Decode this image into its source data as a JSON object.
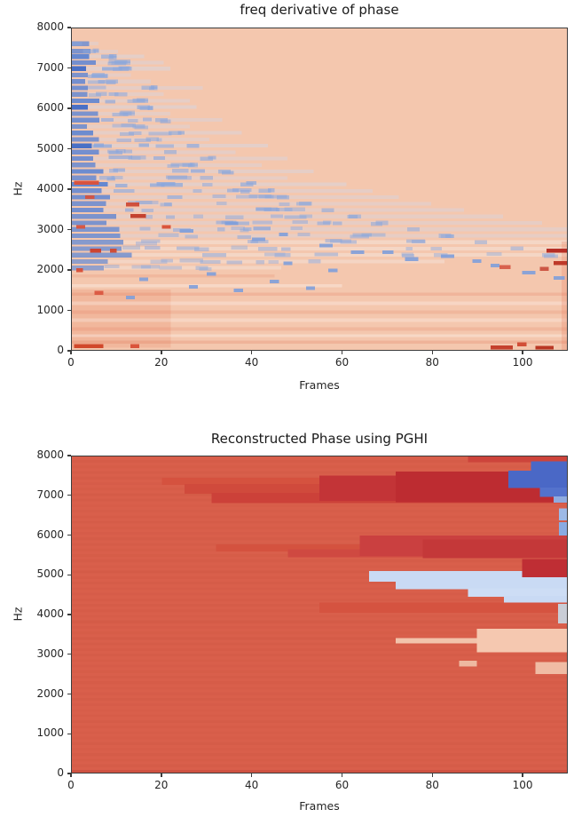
{
  "figure": {
    "background": "#ffffff",
    "spine_color": "#3c3c3c"
  },
  "chart_data": [
    {
      "type": "heatmap",
      "colormap": "coolwarm",
      "title": "freq derivative of phase",
      "xlabel": "Frames",
      "ylabel": "Hz",
      "xlim": [
        0,
        110
      ],
      "ylim": [
        0,
        8000
      ],
      "xticks": [
        0,
        20,
        40,
        60,
        80,
        100
      ],
      "yticks": [
        0,
        1000,
        2000,
        3000,
        4000,
        5000,
        6000,
        7000,
        8000
      ],
      "grid": false,
      "bg": "#f4c7ae",
      "streak_color": "#5d83d0",
      "streak_color_strong": "#4a70c6",
      "streak_color_light": "#8aa6dc",
      "tail_color_high": "rgba(210,216,232,0.55)",
      "tail_color_low": "rgba(244,238,235,0.6)",
      "rows": [
        {
          "hz": 7620,
          "end": 2,
          "s": 0.5
        },
        {
          "hz": 7430,
          "end": 5,
          "s": 0.6
        },
        {
          "hz": 7300,
          "end": 9,
          "s": 0.9
        },
        {
          "hz": 7150,
          "end": 12,
          "s": 0.7
        },
        {
          "hz": 7000,
          "end": 13,
          "s": 1.0
        },
        {
          "hz": 6840,
          "end": 7,
          "s": 0.6
        },
        {
          "hz": 6680,
          "end": 10,
          "s": 0.7
        },
        {
          "hz": 6520,
          "end": 18,
          "s": 0.7
        },
        {
          "hz": 6360,
          "end": 12,
          "s": 0.6
        },
        {
          "hz": 6200,
          "end": 16,
          "s": 0.8
        },
        {
          "hz": 6040,
          "end": 17,
          "s": 1.0
        },
        {
          "hz": 5880,
          "end": 13,
          "s": 0.6
        },
        {
          "hz": 5720,
          "end": 21,
          "s": 0.7
        },
        {
          "hz": 5560,
          "end": 16,
          "s": 0.6
        },
        {
          "hz": 5400,
          "end": 24,
          "s": 0.8
        },
        {
          "hz": 5240,
          "end": 19,
          "s": 0.6
        },
        {
          "hz": 5080,
          "end": 28,
          "s": 1.0
        },
        {
          "hz": 4920,
          "end": 23,
          "s": 0.7
        },
        {
          "hz": 4760,
          "end": 31,
          "s": 0.7
        },
        {
          "hz": 4600,
          "end": 27,
          "s": 0.6
        },
        {
          "hz": 4440,
          "end": 35,
          "s": 0.8
        },
        {
          "hz": 4280,
          "end": 31,
          "s": 0.6
        },
        {
          "hz": 4120,
          "end": 40,
          "s": 0.9
        },
        {
          "hz": 3960,
          "end": 44,
          "s": 0.7
        },
        {
          "hz": 3800,
          "end": 48,
          "s": 0.7
        },
        {
          "hz": 3640,
          "end": 53,
          "s": 0.6
        },
        {
          "hz": 3480,
          "end": 58,
          "s": 0.7
        },
        {
          "hz": 3320,
          "end": 64,
          "s": 0.6
        },
        {
          "hz": 3160,
          "end": 70,
          "s": 0.6
        },
        {
          "hz": 3000,
          "end": 77,
          "s": 0.55
        },
        {
          "hz": 2840,
          "end": 84,
          "s": 0.55
        },
        {
          "hz": 2680,
          "end": 92,
          "s": 0.5
        },
        {
          "hz": 2520,
          "end": 100,
          "s": 0.5
        },
        {
          "hz": 2360,
          "end": 107,
          "s": 0.5
        },
        {
          "hz": 2200,
          "end": 55,
          "s": 0.4
        },
        {
          "hz": 2040,
          "end": 30,
          "s": 0.35
        }
      ],
      "specks_blue": [
        {
          "x": [
            24,
            27
          ],
          "hz": 2960
        },
        {
          "x": [
            34,
            37
          ],
          "hz": 3150
        },
        {
          "x": [
            40,
            43
          ],
          "hz": 2750
        },
        {
          "x": [
            46,
            48
          ],
          "hz": 2870
        },
        {
          "x": [
            55,
            58
          ],
          "hz": 2600
        },
        {
          "x": [
            62,
            65
          ],
          "hz": 2430
        },
        {
          "x": [
            69,
            71.5
          ],
          "hz": 2430
        },
        {
          "x": [
            74,
            77
          ],
          "hz": 2260
        },
        {
          "x": [
            47,
            49
          ],
          "hz": 2150
        },
        {
          "x": [
            57,
            59
          ],
          "hz": 1980
        },
        {
          "x": [
            30,
            32
          ],
          "hz": 1890
        },
        {
          "x": [
            15,
            17
          ],
          "hz": 1760
        },
        {
          "x": [
            26,
            28
          ],
          "hz": 1570
        },
        {
          "x": [
            36,
            38
          ],
          "hz": 1480
        },
        {
          "x": [
            82,
            85
          ],
          "hz": 2330
        },
        {
          "x": [
            89,
            91
          ],
          "hz": 2210
        },
        {
          "x": [
            93,
            95
          ],
          "hz": 2100
        },
        {
          "x": [
            100,
            103
          ],
          "hz": 1920
        },
        {
          "x": [
            107,
            109.5
          ],
          "hz": 1790
        },
        {
          "x": [
            44,
            46
          ],
          "hz": 1700
        },
        {
          "x": [
            52,
            54
          ],
          "hz": 1540
        },
        {
          "x": [
            12,
            14
          ],
          "hz": 1300
        }
      ],
      "specks_red": [
        {
          "x": [
            0.5,
            6
          ],
          "hz": 4160,
          "c": "#dc5038"
        },
        {
          "x": [
            3,
            5
          ],
          "hz": 3800,
          "c": "#d5523e"
        },
        {
          "x": [
            12,
            15
          ],
          "hz": 3620,
          "c": "#cf4a36"
        },
        {
          "x": [
            13,
            16.5
          ],
          "hz": 3330,
          "c": "#c23a26"
        },
        {
          "x": [
            1,
            3
          ],
          "hz": 3060,
          "c": "#da523c"
        },
        {
          "x": [
            20,
            22
          ],
          "hz": 3060,
          "c": "#d84e36"
        },
        {
          "x": [
            4,
            6.5
          ],
          "hz": 2470,
          "c": "#cc3e2a"
        },
        {
          "x": [
            8.5,
            10
          ],
          "hz": 2470,
          "c": "#d04830"
        },
        {
          "x": [
            1,
            2.5
          ],
          "hz": 1980,
          "c": "#d84e36"
        },
        {
          "x": [
            5,
            7
          ],
          "hz": 1420,
          "c": "#da5640"
        },
        {
          "x": [
            0.5,
            7
          ],
          "hz": 95,
          "c": "#cf4125"
        },
        {
          "x": [
            13,
            15
          ],
          "hz": 95,
          "c": "#d84e36"
        },
        {
          "x": [
            93,
            98
          ],
          "hz": 60,
          "c": "#c23a26"
        },
        {
          "x": [
            103,
            107
          ],
          "hz": 55,
          "c": "#b52f1c"
        },
        {
          "x": [
            99,
            101
          ],
          "hz": 140,
          "c": "#d04830"
        },
        {
          "x": [
            105.5,
            110
          ],
          "hz": 2470,
          "c": "#b2261d"
        },
        {
          "x": [
            107,
            110
          ],
          "hz": 2160,
          "c": "#bb3222"
        },
        {
          "x": [
            104,
            106
          ],
          "hz": 2020,
          "c": "#ca513f"
        },
        {
          "x": [
            95,
            97.5
          ],
          "hz": 2060,
          "c": "#d65d49"
        }
      ],
      "features": [
        {
          "x": [
            0,
            22
          ],
          "y": [
            60,
            1500
          ],
          "c": "rgba(228,112,80,0.18)"
        },
        {
          "x": [
            0,
            110
          ],
          "y": [
            150,
            230
          ],
          "c": "rgba(222,100,70,0.20)"
        },
        {
          "x": [
            0,
            110
          ],
          "y": [
            320,
            390
          ],
          "c": "rgba(255,255,255,0.30)"
        },
        {
          "x": [
            0,
            110
          ],
          "y": [
            480,
            560
          ],
          "c": "rgba(222,100,70,0.16)"
        },
        {
          "x": [
            0,
            110
          ],
          "y": [
            700,
            780
          ],
          "c": "rgba(255,255,255,0.25)"
        },
        {
          "x": [
            0,
            110
          ],
          "y": [
            900,
            980
          ],
          "c": "rgba(222,100,70,0.16)"
        },
        {
          "x": [
            0,
            110
          ],
          "y": [
            1120,
            1200
          ],
          "c": "rgba(255,255,255,0.28)"
        },
        {
          "x": [
            0,
            110
          ],
          "y": [
            1350,
            1430
          ],
          "c": "rgba(222,100,70,0.18)"
        },
        {
          "x": [
            0,
            60
          ],
          "y": [
            1560,
            1640
          ],
          "c": "rgba(255,255,255,0.30)"
        },
        {
          "x": [
            0,
            45
          ],
          "y": [
            1800,
            1880
          ],
          "c": "rgba(222,100,70,0.15)"
        },
        {
          "x": [
            108.8,
            110
          ],
          "y": [
            0,
            2700
          ],
          "c": "rgba(230,120,90,0.25)"
        }
      ]
    },
    {
      "type": "heatmap",
      "colormap": "coolwarm",
      "title": "Reconstructed Phase using PGHI",
      "xlabel": "Frames",
      "ylabel": "Hz",
      "xlim": [
        0,
        110
      ],
      "ylim": [
        0,
        8000
      ],
      "xticks": [
        0,
        20,
        40,
        60,
        80,
        100
      ],
      "yticks": [
        0,
        1000,
        2000,
        3000,
        4000,
        5000,
        6000,
        7000,
        8000
      ],
      "grid": false,
      "bg": "#d95f4b",
      "texture": "h-stripes",
      "features": [
        {
          "x": [
            0,
            110
          ],
          "y": [
            0,
            70
          ],
          "c": "#cf5242"
        },
        {
          "x": [
            88,
            110
          ],
          "y": [
            7850,
            8000
          ],
          "c": "#cd443b"
        },
        {
          "x": [
            20,
            110
          ],
          "y": [
            7280,
            7460
          ],
          "c": "#d5523f"
        },
        {
          "x": [
            25,
            110
          ],
          "y": [
            7060,
            7300
          ],
          "c": "#d04a3c"
        },
        {
          "x": [
            31,
            110
          ],
          "y": [
            6820,
            7080
          ],
          "c": "#cc4139"
        },
        {
          "x": [
            55,
            110
          ],
          "y": [
            6880,
            7520
          ],
          "c": "#c33437"
        },
        {
          "x": [
            72,
            110
          ],
          "y": [
            6840,
            7620
          ],
          "c": "#bd2c31"
        },
        {
          "x": [
            102,
            110
          ],
          "y": [
            7620,
            7880
          ],
          "c": "#4a68c6"
        },
        {
          "x": [
            97,
            110
          ],
          "y": [
            7200,
            7640
          ],
          "c": "#4a68c6"
        },
        {
          "x": [
            104,
            110
          ],
          "y": [
            6980,
            7210
          ],
          "c": "#5472cc"
        },
        {
          "x": [
            107,
            110
          ],
          "y": [
            6830,
            6990
          ],
          "c": "#8fabdf"
        },
        {
          "x": [
            108.2,
            110
          ],
          "y": [
            6380,
            6680
          ],
          "c": "#9db9e6"
        },
        {
          "x": [
            108.2,
            110
          ],
          "y": [
            5720,
            6340
          ],
          "c": "#8aabe2"
        },
        {
          "x": [
            32,
            110
          ],
          "y": [
            5600,
            5780
          ],
          "c": "#d4523f"
        },
        {
          "x": [
            48,
            110
          ],
          "y": [
            5450,
            5650
          ],
          "c": "#cf4941"
        },
        {
          "x": [
            64,
            110
          ],
          "y": [
            5480,
            6000
          ],
          "c": "#ca4040"
        },
        {
          "x": [
            78,
            110
          ],
          "y": [
            5430,
            5900
          ],
          "c": "#c43839"
        },
        {
          "x": [
            66,
            110
          ],
          "y": [
            4830,
            5100
          ],
          "c": "#c9daf4"
        },
        {
          "x": [
            72,
            110
          ],
          "y": [
            4640,
            4840
          ],
          "c": "#c9daf4"
        },
        {
          "x": [
            88,
            110
          ],
          "y": [
            4450,
            4660
          ],
          "c": "#cdddf5"
        },
        {
          "x": [
            96,
            110
          ],
          "y": [
            4280,
            4470
          ],
          "c": "#c9daf4"
        },
        {
          "x": [
            100,
            110
          ],
          "y": [
            4940,
            5400
          ],
          "c": "#bf2e34"
        },
        {
          "x": [
            55,
            110
          ],
          "y": [
            4050,
            4300
          ],
          "c": "#d55340"
        },
        {
          "x": [
            108,
            110
          ],
          "y": [
            3780,
            4270
          ],
          "c": "#c9cdd6"
        },
        {
          "x": [
            72,
            91
          ],
          "y": [
            3270,
            3410
          ],
          "c": "#f2c3ab"
        },
        {
          "x": [
            90,
            110
          ],
          "y": [
            3040,
            3640
          ],
          "c": "#f5c8b0"
        },
        {
          "x": [
            103,
            110
          ],
          "y": [
            2490,
            2800
          ],
          "c": "#f0bca4"
        },
        {
          "x": [
            86,
            90
          ],
          "y": [
            2680,
            2830
          ],
          "c": "#eeb9a1"
        }
      ]
    }
  ]
}
